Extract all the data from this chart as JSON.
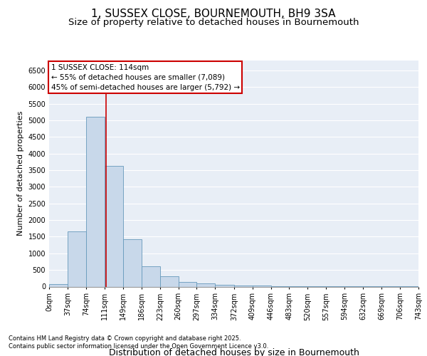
{
  "title_line1": "1, SUSSEX CLOSE, BOURNEMOUTH, BH9 3SA",
  "title_line2": "Size of property relative to detached houses in Bournemouth",
  "xlabel": "Distribution of detached houses by size in Bournemouth",
  "ylabel": "Number of detached properties",
  "bar_color": "#c8d8ea",
  "bar_edge_color": "#6699bb",
  "vline_color": "#cc0000",
  "vline_x": 114,
  "annotation_title": "1 SUSSEX CLOSE: 114sqm",
  "annotation_line2": "← 55% of detached houses are smaller (7,089)",
  "annotation_line3": "45% of semi-detached houses are larger (5,792) →",
  "annotation_box_color": "#cc0000",
  "bin_edges": [
    0,
    37,
    74,
    111,
    149,
    186,
    223,
    260,
    297,
    334,
    372,
    409,
    446,
    483,
    520,
    557,
    594,
    632,
    669,
    706,
    743
  ],
  "bar_heights": [
    75,
    1650,
    5100,
    3630,
    1430,
    620,
    310,
    130,
    90,
    55,
    40,
    30,
    15,
    10,
    8,
    5,
    4,
    3,
    2,
    2
  ],
  "ylim": [
    0,
    6800
  ],
  "yticks": [
    0,
    500,
    1000,
    1500,
    2000,
    2500,
    3000,
    3500,
    4000,
    4500,
    5000,
    5500,
    6000,
    6500
  ],
  "background_color": "#e8eef6",
  "footnote_line1": "Contains HM Land Registry data © Crown copyright and database right 2025.",
  "footnote_line2": "Contains public sector information licensed under the Open Government Licence v3.0.",
  "title_fontsize": 11,
  "subtitle_fontsize": 9.5,
  "tick_label_fontsize": 7,
  "xlabel_fontsize": 9,
  "ylabel_fontsize": 8,
  "annotation_fontsize": 7.5,
  "footnote_fontsize": 6
}
